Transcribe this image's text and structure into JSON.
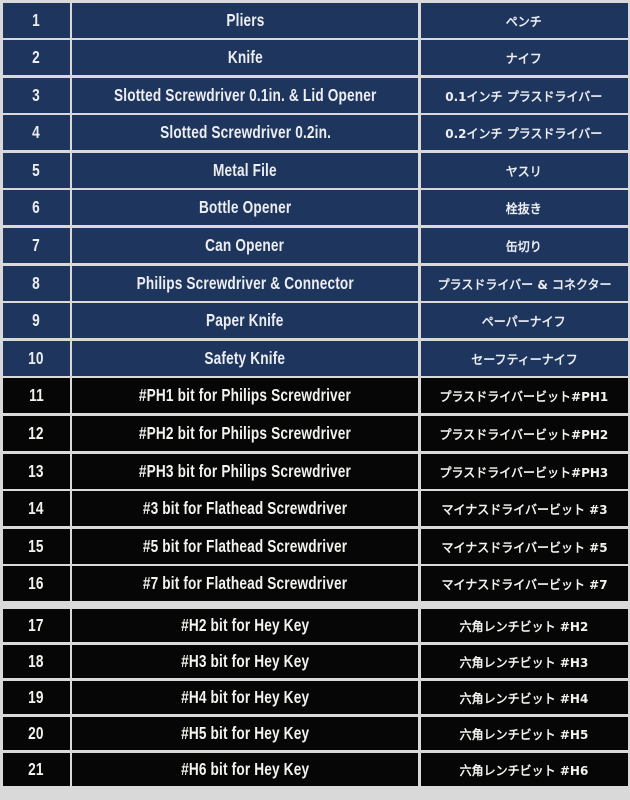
{
  "table": {
    "rows": [
      {
        "no": "1",
        "en": "Pliers",
        "ja": "ペンチ",
        "theme": "navy"
      },
      {
        "no": "2",
        "en": "Knife",
        "ja": "ナイフ",
        "theme": "navy"
      },
      {
        "no": "3",
        "en": "Slotted Screwdriver 0.1in. & Lid Opener",
        "ja": "0.1インチ プラスドライバー",
        "theme": "navy"
      },
      {
        "no": "4",
        "en": "Slotted Screwdriver 0.2in.",
        "ja": "0.2インチ プラスドライバー",
        "theme": "navy"
      },
      {
        "no": "5",
        "en": "Metal File",
        "ja": "ヤスリ",
        "theme": "navy"
      },
      {
        "no": "6",
        "en": "Bottle Opener",
        "ja": "栓抜き",
        "theme": "navy"
      },
      {
        "no": "7",
        "en": "Can Opener",
        "ja": "缶切り",
        "theme": "navy"
      },
      {
        "no": "8",
        "en": "Philips Screwdriver & Connector",
        "ja": "プラスドライバー & コネクター",
        "theme": "navy"
      },
      {
        "no": "9",
        "en": "Paper Knife",
        "ja": "ペーパーナイフ",
        "theme": "navy"
      },
      {
        "no": "10",
        "en": "Safety Knife",
        "ja": "セーフティーナイフ",
        "theme": "navy"
      },
      {
        "no": "11",
        "en": "#PH1 bit for Philips Screwdriver",
        "ja": "プラスドライバービット#PH1",
        "theme": "black"
      },
      {
        "no": "12",
        "en": "#PH2 bit for Philips Screwdriver",
        "ja": "プラスドライバービット#PH2",
        "theme": "black"
      },
      {
        "no": "13",
        "en": "#PH3 bit for Philips Screwdriver",
        "ja": "プラスドライバービット#PH3",
        "theme": "black"
      },
      {
        "no": "14",
        "en": "#3 bit for Flathead Screwdriver",
        "ja": "マイナスドライバービット #3",
        "theme": "black"
      },
      {
        "no": "15",
        "en": "#5 bit for Flathead Screwdriver",
        "ja": "マイナスドライバービット #5",
        "theme": "black"
      },
      {
        "no": "16",
        "en": "#7 bit for Flathead Screwdriver",
        "ja": "マイナスドライバービット #7",
        "theme": "black"
      },
      {
        "no": "17",
        "en": "#H2 bit for Hey Key",
        "ja": "六角レンチビット #H2",
        "theme": "black"
      },
      {
        "no": "18",
        "en": "#H3 bit for Hey Key",
        "ja": "六角レンチビット #H3",
        "theme": "black"
      },
      {
        "no": "19",
        "en": "#H4 bit for Hey Key",
        "ja": "六角レンチビット #H4",
        "theme": "black"
      },
      {
        "no": "20",
        "en": "#H5 bit for Hey Key",
        "ja": "六角レンチビット #H5",
        "theme": "black"
      },
      {
        "no": "21",
        "en": "#H6 bit for Hey Key",
        "ja": "六角レンチビット #H6",
        "theme": "black"
      }
    ]
  },
  "colors": {
    "row_navy_bg": "#1e355e",
    "row_black_bg": "#060606",
    "grid_gap": "#d9d9d9",
    "text_on_navy": "#eceef2",
    "text_on_black": "#f2f2ee"
  }
}
